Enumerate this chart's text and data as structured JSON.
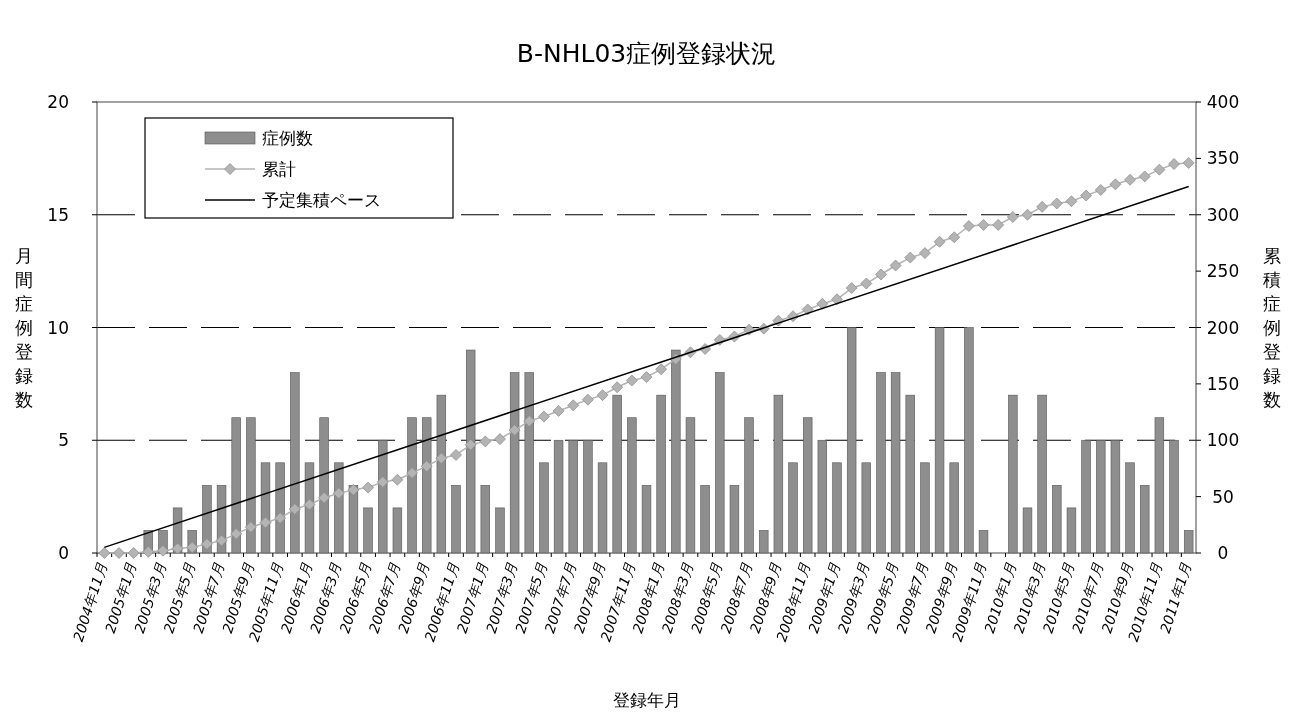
{
  "chart_data": {
    "type": "bar",
    "title": "B-NHL03症例登録状況",
    "xlabel": "登録年月",
    "ylabel": "月間症例登録数",
    "y2label": "累積症例登録数",
    "categories": [
      "2004年11月",
      null,
      "2005年1月",
      null,
      "2005年3月",
      null,
      "2005年5月",
      null,
      "2005年7月",
      null,
      "2005年9月",
      null,
      "2005年11月",
      null,
      "2006年1月",
      null,
      "2006年3月",
      null,
      "2006年5月",
      null,
      "2006年7月",
      null,
      "2006年9月",
      null,
      "2006年11月",
      null,
      "2007年1月",
      null,
      "2007年3月",
      null,
      "2007年5月",
      null,
      "2007年7月",
      null,
      "2007年9月",
      null,
      "2007年11月",
      null,
      "2008年1月",
      null,
      "2008年3月",
      null,
      "2008年5月",
      null,
      "2008年7月",
      null,
      "2008年9月",
      null,
      "2008年11月",
      null,
      "2009年1月",
      null,
      "2009年3月",
      null,
      "2009年5月",
      null,
      "2009年7月",
      null,
      "2009年9月",
      null,
      "2009年11月",
      null,
      "2010年1月",
      null,
      "2010年3月",
      null,
      "2010年5月",
      null,
      "2010年7月",
      null,
      "2010年9月",
      null,
      "2010年11月",
      null,
      "2011年1月"
    ],
    "series": [
      {
        "name": "症例数",
        "color": "#8e8e8e",
        "values": [
          0,
          0,
          0,
          1,
          1,
          2,
          1,
          3,
          3,
          6,
          6,
          4,
          4,
          8,
          4,
          6,
          4,
          3,
          2,
          5,
          2,
          6,
          6,
          7,
          3,
          9,
          3,
          2,
          8,
          8,
          4,
          5,
          5,
          5,
          4,
          7,
          6,
          3,
          7,
          9,
          6,
          3,
          8,
          3,
          6,
          1,
          7,
          4,
          6,
          5,
          4,
          10,
          4,
          8,
          8,
          7,
          4,
          10,
          4,
          10,
          1,
          0,
          7,
          2,
          7,
          3,
          2,
          5,
          5,
          5,
          4,
          3,
          6,
          5,
          1
        ]
      },
      {
        "name": "累計",
        "type": "line",
        "axis": "y2",
        "marker": "diamond",
        "color": "#b4b4b4",
        "values": [
          0,
          0,
          0,
          1,
          2,
          4,
          5,
          8,
          11,
          17,
          23,
          27,
          31,
          39,
          43,
          49,
          53,
          56,
          58,
          63,
          65,
          71,
          77,
          84,
          87,
          96,
          99,
          101,
          109,
          117,
          121,
          126,
          131,
          136,
          140,
          147,
          153,
          156,
          163,
          172,
          178,
          181,
          189,
          192,
          198,
          199,
          206,
          210,
          216,
          221,
          225,
          235,
          239,
          247,
          255,
          262,
          266,
          276,
          280,
          290,
          291,
          291,
          298,
          300,
          307,
          310,
          312,
          317,
          322,
          327,
          331,
          334,
          340,
          345,
          346
        ]
      },
      {
        "name": "予定集積ペース",
        "type": "line",
        "axis": "y2",
        "marker": "none",
        "color": "#000000",
        "x": [
          "2004年11月",
          "2011年1月"
        ],
        "values": [
          5,
          325
        ]
      }
    ],
    "ylim": [
      0,
      20
    ],
    "yticks": [
      0,
      5,
      10,
      15,
      20
    ],
    "y2lim": [
      0,
      400
    ],
    "y2ticks": [
      0,
      50,
      100,
      150,
      200,
      250,
      300,
      350,
      400
    ],
    "grid": "y",
    "legend": "top left"
  }
}
